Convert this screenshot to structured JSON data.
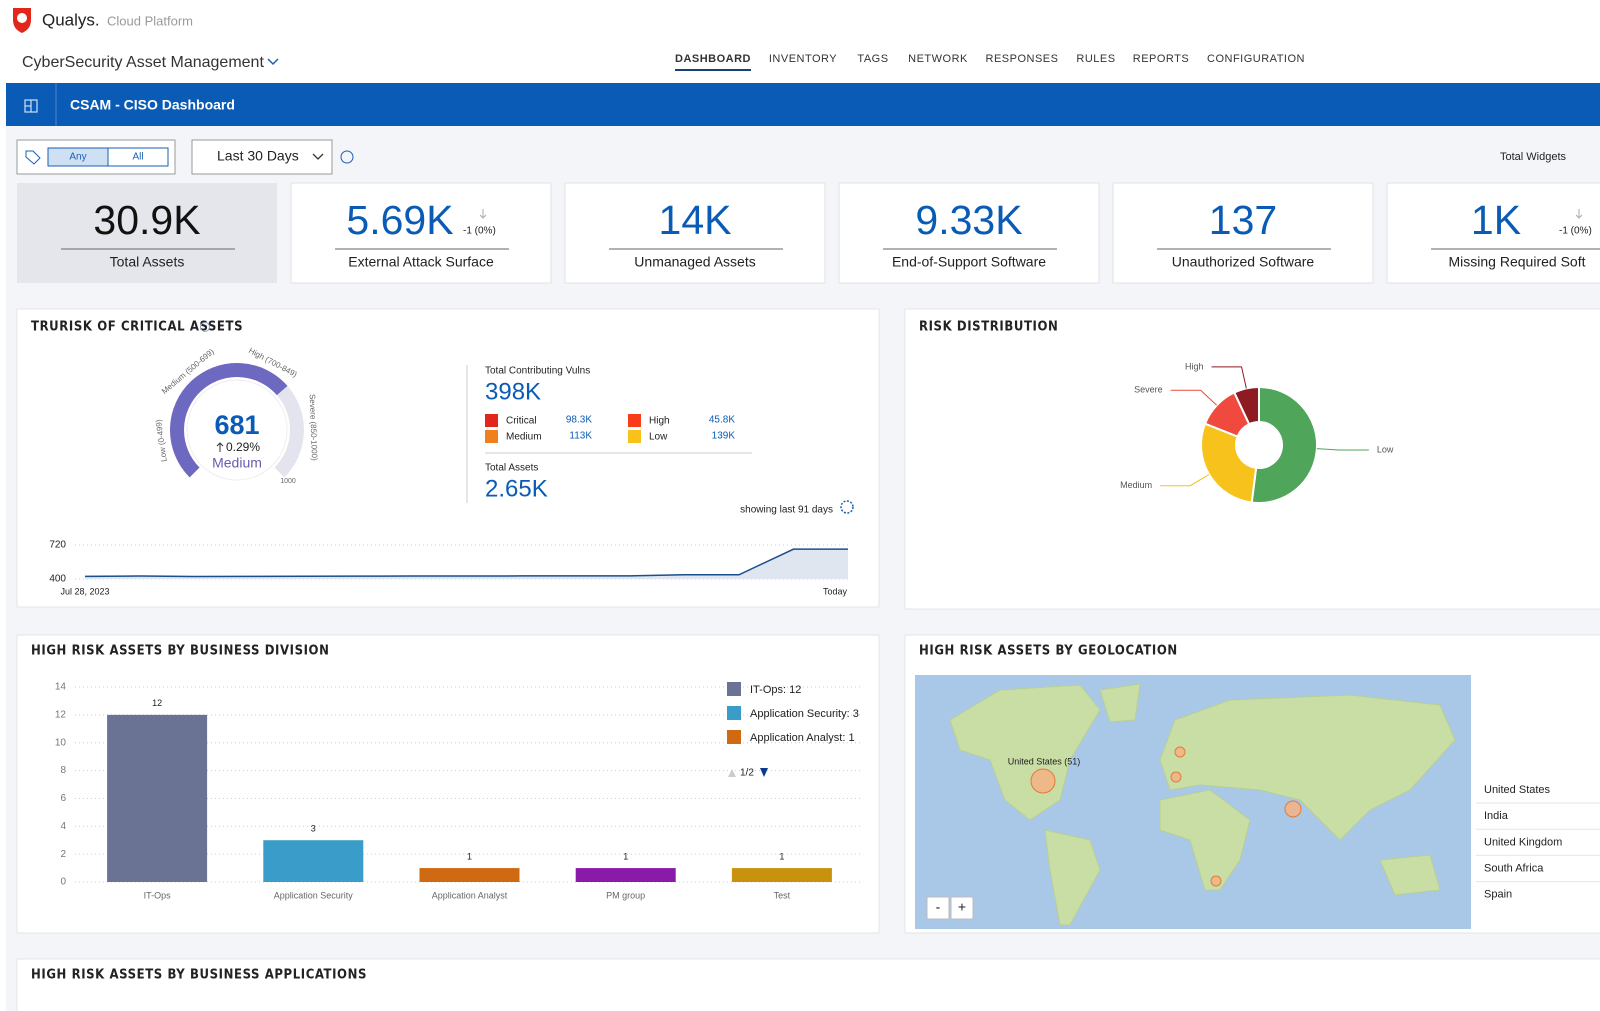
{
  "header": {
    "brand": "Qualys.",
    "platform": "Cloud Platform",
    "app": "CyberSecurity Asset Management",
    "nav": [
      "DASHBOARD",
      "INVENTORY",
      "TAGS",
      "NETWORK",
      "RESPONSES",
      "RULES",
      "REPORTS",
      "CONFIGURATION"
    ],
    "active_nav": 0
  },
  "toolbar": {
    "dashboard": "CSAM - CISO Dashboard",
    "tag_any": "Any",
    "tag_all": "All",
    "range": "Last 30 Days",
    "total_widgets": "Total Widgets"
  },
  "kpis": [
    {
      "value": "30.9K",
      "label": "Total Assets"
    },
    {
      "value": "5.69K",
      "change": "-1 (0%)",
      "label": "External Attack Surface"
    },
    {
      "value": "14K",
      "label": "Unmanaged Assets"
    },
    {
      "value": "9.33K",
      "label": "End-of-Support Software"
    },
    {
      "value": "137",
      "label": "Unauthorized Software"
    },
    {
      "value": "1K",
      "change": "-1 (0%)",
      "label": "Missing Required Soft"
    }
  ],
  "trurisk": {
    "title": "TRURISK OF CRITICAL ASSETS",
    "score": 681,
    "gauge_max": 1000,
    "delta": "0.29%",
    "level": "Medium",
    "gauge_labels": [
      "Low (0-499)",
      "Medium (500-699)",
      "High (700-849)",
      "Severe (850-1000)"
    ],
    "vulns_label": "Total Contributing Vulns",
    "vulns": "398K",
    "breakdown": [
      {
        "name": "Critical",
        "value": "98.3K",
        "color": "#e2261c"
      },
      {
        "name": "Medium",
        "value": "113K",
        "color": "#f07f1c"
      },
      {
        "name": "High",
        "value": "45.8K",
        "color": "#f73d1a"
      },
      {
        "name": "Low",
        "value": "139K",
        "color": "#f6c21b"
      }
    ],
    "assets_label": "Total Assets",
    "assets": "2.65K",
    "showing": "showing last 91 days"
  },
  "risk_distribution": {
    "title": "RISK DISTRIBUTION"
  },
  "business_division": {
    "title": "HIGH RISK ASSETS BY BUSINESS DIVISION"
  },
  "geo": {
    "title": "HIGH RISK ASSETS BY GEOLOCATION",
    "map_label": "United States (51)",
    "zoom_out": "-",
    "zoom_in": "+",
    "countries": [
      "United States",
      "India",
      "United Kingdom",
      "South Africa",
      "Spain"
    ]
  },
  "applications": {
    "title": "HIGH RISK ASSETS BY BUSINESS APPLICATIONS"
  },
  "chart_data": [
    {
      "type": "line",
      "categories": [
        "Jul 28, 2023",
        null,
        null,
        null,
        null,
        null,
        null,
        null,
        null,
        null,
        null,
        null,
        null,
        null,
        "Today"
      ],
      "values": [
        425,
        428,
        423,
        425,
        426,
        427,
        428,
        428,
        429,
        429,
        430,
        440,
        440,
        681,
        681
      ],
      "color": "#1a4f8c",
      "ylim": [
        400,
        720
      ],
      "yticks": [
        400,
        720
      ],
      "grid": true
    },
    {
      "type": "pie",
      "categories": [
        "Low",
        "Medium",
        "Severe",
        "High"
      ],
      "values": [
        52,
        29,
        12,
        7
      ],
      "colors": [
        "#4fa55a",
        "#f6c21b",
        "#f04a3e",
        "#8e1a22"
      ]
    },
    {
      "type": "bar",
      "categories": [
        "IT-Ops",
        "Application Security",
        "Application Analyst",
        "PM group",
        "Test"
      ],
      "values": [
        12,
        3,
        1,
        1,
        1
      ],
      "colors": [
        "#6b7394",
        "#3a9cc8",
        "#d06a12",
        "#8a1aa8",
        "#c8920f"
      ],
      "ylim": [
        0,
        14
      ],
      "yticks": [
        0,
        2,
        4,
        6,
        8,
        10,
        12,
        14
      ],
      "grid": true,
      "legend": [
        "IT-Ops: 12",
        "Application Security: 3",
        "Application Analyst: 1"
      ],
      "legend_page": "1/2"
    }
  ]
}
